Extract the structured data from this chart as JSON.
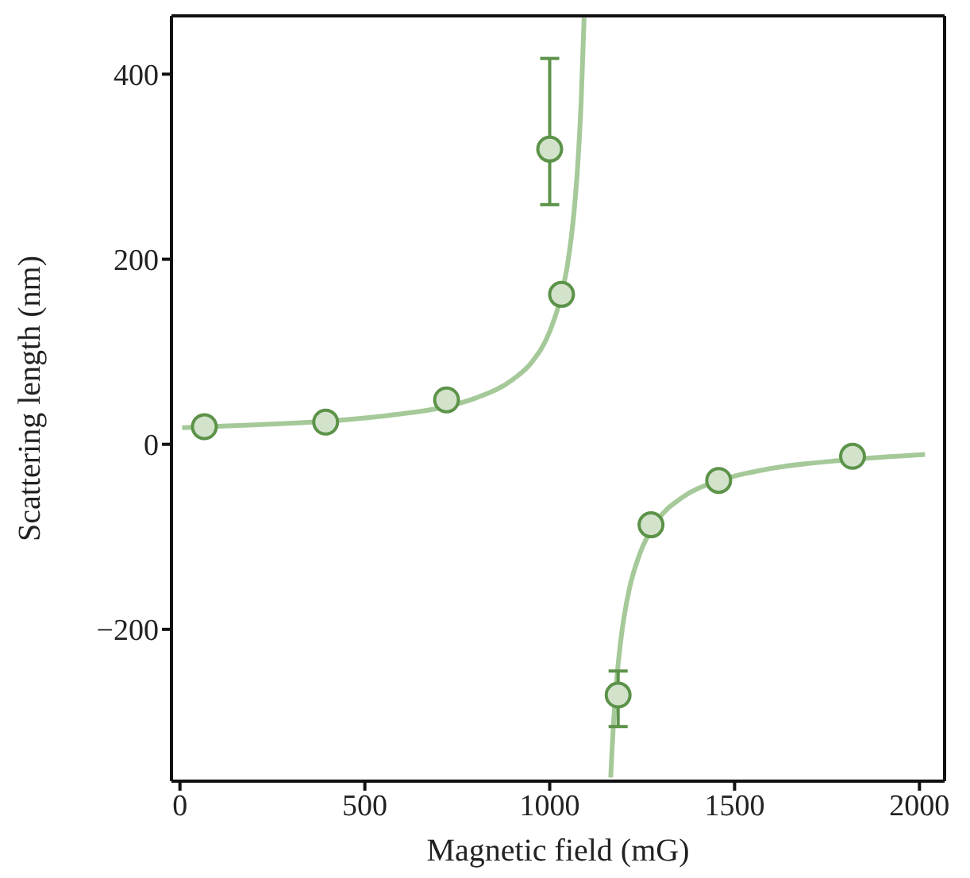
{
  "chart_data": {
    "type": "scatter",
    "xlabel": "Magnetic field (mG)",
    "ylabel": "Scattering length (nm)",
    "xlim": [
      -23,
      2068
    ],
    "ylim": [
      -364,
      463
    ],
    "xticks": [
      0,
      500,
      1000,
      1500,
      2000
    ],
    "yticks": [
      -200,
      0,
      200,
      400
    ],
    "series": [
      {
        "type": "line",
        "color": "#95bf87",
        "marker": "none",
        "line_style": "solid",
        "x": [
          6,
          200,
          400,
          600,
          700,
          800,
          900,
          950,
          1000,
          1030,
          1050,
          1065,
          1075,
          1085,
          1093,
          1125,
          1165,
          1170,
          1180,
          1195,
          1215,
          1245,
          1290,
          1360,
          1460,
          1600,
          1800,
          2015
        ],
        "values": [
          18,
          21,
          25,
          33,
          39,
          50,
          70,
          88,
          122,
          159,
          199,
          248,
          297,
          370,
          461,
          null,
          -360,
          -319,
          -260,
          -203,
          -157,
          -117,
          -83,
          -57,
          -39,
          -26,
          -17,
          -11
        ]
      },
      {
        "color": "#5c9349",
        "marker": "circle",
        "x": [
          66,
          394,
          721,
          1000,
          1032,
          1185,
          1274,
          1457,
          1819
        ],
        "values": [
          19,
          24,
          48,
          319,
          162,
          -271,
          -87,
          -39,
          -13
        ],
        "errors": [
          null,
          null,
          null,
          [
            259,
            417
          ],
          null,
          [
            -305,
            -245
          ],
          null,
          null,
          null
        ]
      }
    ]
  }
}
